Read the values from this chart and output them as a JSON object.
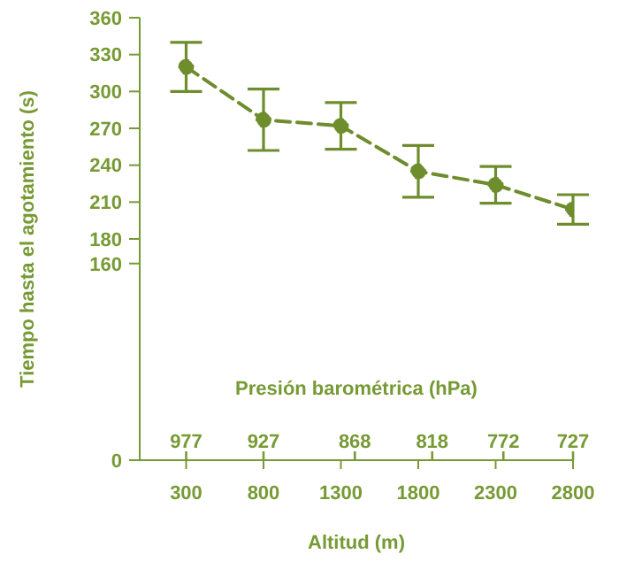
{
  "chart_data": {
    "type": "line",
    "xlabel": "Altitud (m)",
    "ylabel": "Tiempo hasta el agotamiento (s)",
    "x2label": "Presión barométrica (hPa)",
    "x": [
      300,
      800,
      1300,
      1800,
      2300,
      2800
    ],
    "series": [
      {
        "color": "#6e8d2c",
        "values": [
          320,
          277,
          272,
          235,
          224,
          204
        ],
        "errors": [
          20,
          25,
          19,
          21,
          15,
          12
        ]
      }
    ],
    "xlim": [
      0,
      2800
    ],
    "xticks": [
      300,
      800,
      1300,
      1800,
      2300,
      2800
    ],
    "x2lim": [
      1007,
      727
    ],
    "x2ticks": [
      977,
      927,
      868,
      818,
      772,
      727
    ],
    "ylim": [
      0,
      360
    ],
    "yticks": [
      0,
      160,
      180,
      210,
      240,
      270,
      300,
      330,
      360
    ],
    "marker": "circle",
    "line_style": "dashed"
  }
}
